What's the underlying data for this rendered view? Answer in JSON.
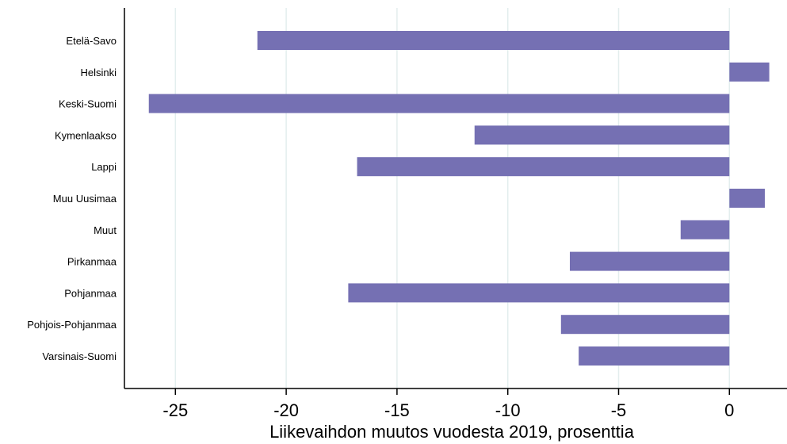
{
  "chart_data": {
    "type": "bar",
    "orientation": "horizontal",
    "categories": [
      "Etelä-Savo",
      "Helsinki",
      "Keski-Suomi",
      "Kymenlaakso",
      "Lappi",
      "Muu Uusimaa",
      "Muut",
      "Pirkanmaa",
      "Pohjanmaa",
      "Pohjois-Pohjanmaa",
      "Varsinais-Suomi"
    ],
    "values": [
      -21.3,
      1.8,
      -26.2,
      -11.5,
      -16.8,
      1.6,
      -2.2,
      -7.2,
      -17.2,
      -7.6,
      -6.8
    ],
    "xlabel": "Liikevaihdon muutos vuodesta 2019, prosenttia",
    "ylabel": "",
    "xlim": [
      -27.3,
      2.6
    ],
    "xticks": [
      -25,
      -20,
      -15,
      -10,
      -5,
      0
    ],
    "xtick_labels": [
      "-25",
      "-20",
      "-15",
      "-10",
      "-5",
      "0"
    ],
    "grid": "vertical",
    "colors": {
      "bar": "#7570b3",
      "grid": "#e3eeee",
      "axis": "#000000"
    }
  }
}
